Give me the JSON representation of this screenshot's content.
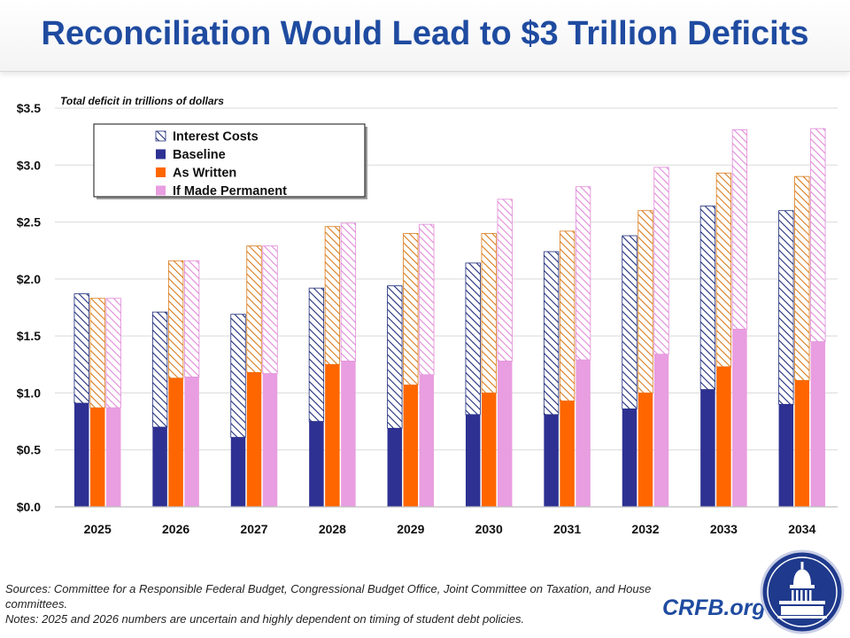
{
  "title": "Reconciliation Would Lead to $3 Trillion Deficits",
  "footer": {
    "sources": "Sources: Committee for a Responsible Federal Budget, Congressional Budget Office, Joint Committee on Taxation, and House committees.",
    "notes": "Notes: 2025 and 2026 numbers are uncertain and highly dependent on timing of student debt policies."
  },
  "brand": {
    "site": "CRFB.org",
    "logo_icon": "capitol-dome-seal-icon"
  },
  "chart_data": {
    "type": "bar",
    "subtype": "grouped-stacked",
    "title": "",
    "ylabel": "Total deficit in trillions of dollars",
    "xlabel": "",
    "ylim": [
      0,
      3.5
    ],
    "yticks": [
      0,
      0.5,
      1.0,
      1.5,
      2.0,
      2.5,
      3.0,
      3.5
    ],
    "ytick_labels": [
      "$0.0",
      "$0.5",
      "$1.0",
      "$1.5",
      "$2.0",
      "$2.5",
      "$3.0",
      "$3.5"
    ],
    "grid": true,
    "legend_placement": "top-left",
    "categories": [
      "2025",
      "2026",
      "2027",
      "2028",
      "2029",
      "2030",
      "2031",
      "2032",
      "2033",
      "2034"
    ],
    "legend": [
      {
        "label": "Interest Costs",
        "color": "#1f2d7a",
        "pattern": "hatched"
      },
      {
        "label": "Baseline",
        "color": "#2e3192"
      },
      {
        "label": "As Written",
        "color": "#ff6600"
      },
      {
        "label": "If Made Permanent",
        "color": "#e89ee0"
      }
    ],
    "series": [
      {
        "name": "Baseline",
        "color": "#2e3192",
        "primary": [
          0.91,
          0.7,
          0.61,
          0.75,
          0.69,
          0.81,
          0.81,
          0.86,
          1.03,
          0.9
        ],
        "total": [
          1.87,
          1.71,
          1.69,
          1.92,
          1.94,
          2.14,
          2.24,
          2.38,
          2.64,
          2.6
        ]
      },
      {
        "name": "As Written",
        "color": "#ff6600",
        "primary": [
          0.87,
          1.13,
          1.18,
          1.25,
          1.07,
          1.0,
          0.93,
          1.0,
          1.23,
          1.11
        ],
        "total": [
          1.83,
          2.16,
          2.29,
          2.46,
          2.4,
          2.4,
          2.42,
          2.6,
          2.93,
          2.9
        ]
      },
      {
        "name": "If Made Permanent",
        "color": "#e89ee0",
        "primary": [
          0.87,
          1.14,
          1.17,
          1.28,
          1.16,
          1.28,
          1.29,
          1.34,
          1.56,
          1.45
        ],
        "total": [
          1.83,
          2.16,
          2.29,
          2.49,
          2.48,
          2.7,
          2.81,
          2.98,
          3.31,
          3.32
        ]
      }
    ]
  }
}
